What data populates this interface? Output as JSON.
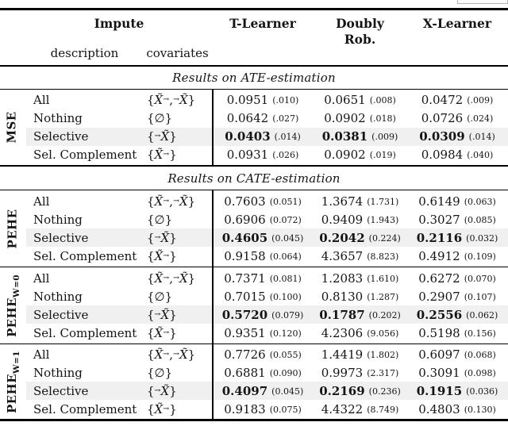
{
  "header": {
    "impute": "Impute",
    "sub_description": "description",
    "sub_covariates": "covariates",
    "col_t": "T-Learner",
    "col_d_line1": "Doubly",
    "col_d_line2": "Rob.",
    "col_x": "X-Learner"
  },
  "titles": {
    "ate": "Results on ATE-estimation",
    "cate": "Results on CATE-estimation"
  },
  "colors": {
    "highlight": "#f0f0f0",
    "rule": "#000000",
    "text": "#141414"
  },
  "groups": [
    {
      "label": "MSE",
      "label_sub": "",
      "rows": [
        {
          "description": "All",
          "covariates": "{X̃^{→}, ^{→}X̃}",
          "highlight": false,
          "bold": false,
          "values": [
            [
              "0.0951",
              "(.010)"
            ],
            [
              "0.0651",
              "(.008)"
            ],
            [
              "0.0472",
              "(.009)"
            ]
          ]
        },
        {
          "description": "Nothing",
          "covariates": "{∅}",
          "highlight": false,
          "bold": false,
          "values": [
            [
              "0.0642",
              "(.027)"
            ],
            [
              "0.0902",
              "(.018)"
            ],
            [
              "0.0726",
              "(.024)"
            ]
          ]
        },
        {
          "description": "Selective",
          "covariates": "{^{→}X̃}",
          "highlight": true,
          "bold": true,
          "values": [
            [
              "0.0403",
              "(.014)"
            ],
            [
              "0.0381",
              "(.009)"
            ],
            [
              "0.0309",
              "(.014)"
            ]
          ]
        },
        {
          "description": "Sel. Complement",
          "covariates": "{X̃^{→}}",
          "highlight": false,
          "bold": false,
          "values": [
            [
              "0.0931",
              "(.026)"
            ],
            [
              "0.0902",
              "(.019)"
            ],
            [
              "0.0984",
              "(.040)"
            ]
          ]
        }
      ]
    },
    {
      "label": "PEHE",
      "label_sub": "",
      "rows": [
        {
          "description": "All",
          "covariates": "{X̃^{→}, ^{→}X̃}",
          "highlight": false,
          "bold": false,
          "values": [
            [
              "0.7603",
              "(0.051)"
            ],
            [
              "1.3674",
              "(1.731)"
            ],
            [
              "0.6149",
              "(0.063)"
            ]
          ]
        },
        {
          "description": "Nothing",
          "covariates": "{∅}",
          "highlight": false,
          "bold": false,
          "values": [
            [
              "0.6906",
              "(0.072)"
            ],
            [
              "0.9409",
              "(1.943)"
            ],
            [
              "0.3027",
              "(0.085)"
            ]
          ]
        },
        {
          "description": "Selective",
          "covariates": "{^{→}X̃}",
          "highlight": true,
          "bold": true,
          "values": [
            [
              "0.4605",
              "(0.045)"
            ],
            [
              "0.2042",
              "(0.224)"
            ],
            [
              "0.2116",
              "(0.032)"
            ]
          ]
        },
        {
          "description": "Sel. Complement",
          "covariates": "{X̃^{→}}",
          "highlight": false,
          "bold": false,
          "values": [
            [
              "0.9158",
              "(0.064)"
            ],
            [
              "4.3657",
              "(8.823)"
            ],
            [
              "0.4912",
              "(0.109)"
            ]
          ]
        }
      ]
    },
    {
      "label": "PEHE",
      "label_sub": "W=0",
      "rows": [
        {
          "description": "All",
          "covariates": "{X̃^{→}, ^{→}X̃}",
          "highlight": false,
          "bold": false,
          "values": [
            [
              "0.7371",
              "(0.081)"
            ],
            [
              "1.2083",
              "(1.610)"
            ],
            [
              "0.6272",
              "(0.070)"
            ]
          ]
        },
        {
          "description": "Nothing",
          "covariates": "{∅}",
          "highlight": false,
          "bold": false,
          "values": [
            [
              "0.7015",
              "(0.100)"
            ],
            [
              "0.8130",
              "(1.287)"
            ],
            [
              "0.2907",
              "(0.107)"
            ]
          ]
        },
        {
          "description": "Selective",
          "covariates": "{^{→}X̃}",
          "highlight": true,
          "bold": true,
          "values": [
            [
              "0.5720",
              "(0.079)"
            ],
            [
              "0.1787",
              "(0.202)"
            ],
            [
              "0.2556",
              "(0.062)"
            ]
          ]
        },
        {
          "description": "Sel. Complement",
          "covariates": "{X̃^{→}}",
          "highlight": false,
          "bold": false,
          "values": [
            [
              "0.9351",
              "(0.120)"
            ],
            [
              "4.2306",
              "(9.056)"
            ],
            [
              "0.5198",
              "(0.156)"
            ]
          ]
        }
      ]
    },
    {
      "label": "PEHE",
      "label_sub": "W=1",
      "rows": [
        {
          "description": "All",
          "covariates": "{X̃^{→}, ^{→}X̃}",
          "highlight": false,
          "bold": false,
          "values": [
            [
              "0.7726",
              "(0.055)"
            ],
            [
              "1.4419",
              "(1.802)"
            ],
            [
              "0.6097",
              "(0.068)"
            ]
          ]
        },
        {
          "description": "Nothing",
          "covariates": "{∅}",
          "highlight": false,
          "bold": false,
          "values": [
            [
              "0.6881",
              "(0.090)"
            ],
            [
              "0.9973",
              "(2.317)"
            ],
            [
              "0.3091",
              "(0.098)"
            ]
          ]
        },
        {
          "description": "Selective",
          "covariates": "{^{→}X̃}",
          "highlight": true,
          "bold": true,
          "values": [
            [
              "0.4097",
              "(0.045)"
            ],
            [
              "0.2169",
              "(0.236)"
            ],
            [
              "0.1915",
              "(0.036)"
            ]
          ]
        },
        {
          "description": "Sel. Complement",
          "covariates": "{X̃^{→}}",
          "highlight": false,
          "bold": false,
          "values": [
            [
              "0.9183",
              "(0.075)"
            ],
            [
              "4.4322",
              "(8.749)"
            ],
            [
              "0.4803",
              "(0.130)"
            ]
          ]
        }
      ]
    }
  ]
}
